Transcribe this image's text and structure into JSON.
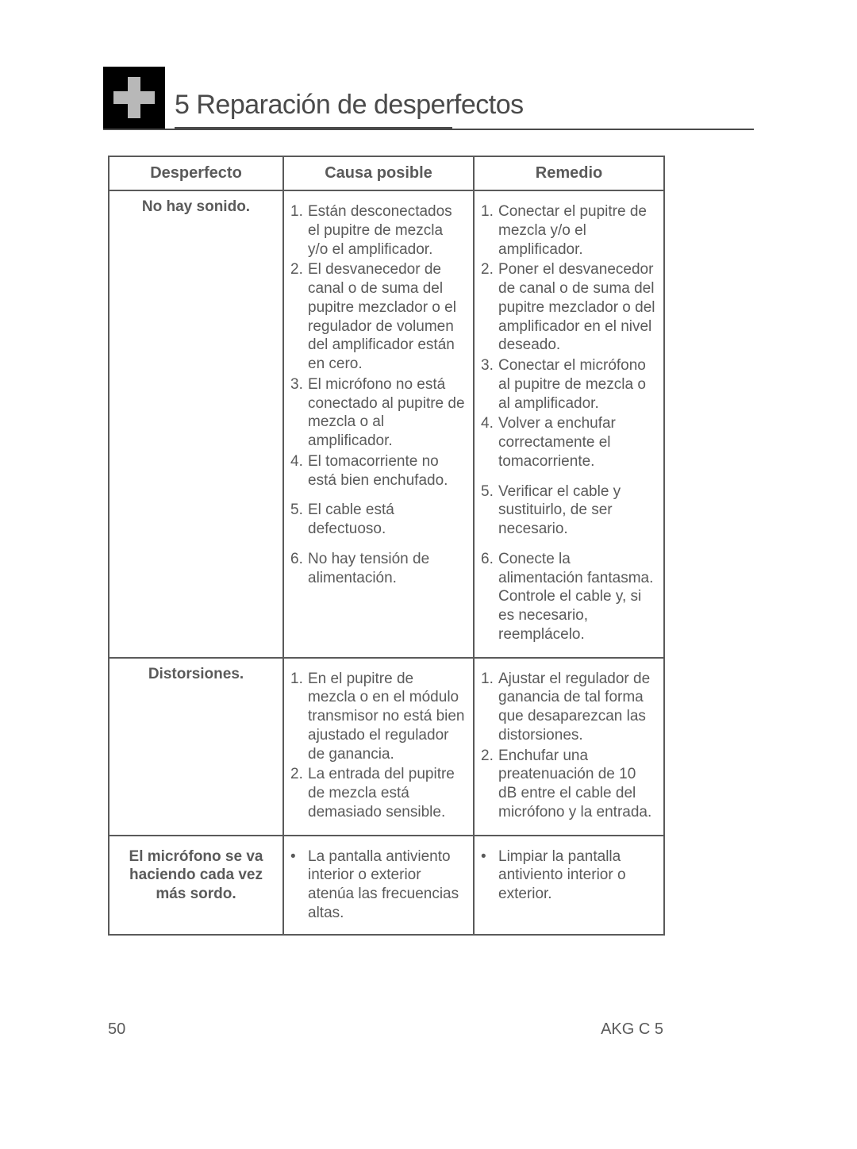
{
  "section": {
    "title": "5 Reparación de desperfectos"
  },
  "table": {
    "headers": [
      "Desperfecto",
      "Causa posible",
      "Remedio"
    ],
    "rows": [
      {
        "label": "No hay sonido.",
        "causes": [
          "Están desconectados el pupitre de mezcla y/o el amplificador.",
          "El desvanecedor de canal o de suma del pupitre mezclador o el regulador de volumen del amplificador están en cero.",
          "El micrófono no está conectado al pupitre de mezcla o al amplificador.",
          "El tomacorriente no está bien enchufado.",
          "El cable está defectuoso.",
          "No hay tensión de alimentación."
        ],
        "remedies": [
          "Conectar el pupitre de mezcla y/o el amplificador.",
          "Poner el desvanecedor de canal o de suma del pupitre mezclador o del amplificador en el nivel deseado.",
          "Conectar el micrófono al pupitre de mezcla o al amplificador.",
          "Volver a enchufar correctamente el tomacorriente.",
          "Verificar el cable y sustituirlo, de ser necesario.",
          "Conecte la alimentación fantasma. Controle el cable y, si es necesario, reemplácelo."
        ],
        "list_type": "num",
        "extra_gap_after": [
          3,
          4
        ]
      },
      {
        "label": "Distorsiones.",
        "causes": [
          "En el pupitre de mezcla o en el módulo transmisor no está bien ajustado el regulador de ganancia.",
          "La entrada del pupitre de mezcla está demasiado sensible."
        ],
        "remedies": [
          "Ajustar el regulador de ganancia de tal forma que desaparezcan las distorsiones.",
          "Enchufar una preatenuación de 10 dB entre el cable del micrófono y la entrada."
        ],
        "list_type": "num"
      },
      {
        "label": "El micrófono se va haciendo cada vez más sordo.",
        "causes": [
          "La pantalla antiviento interior o exterior atenúa las frecuencias altas."
        ],
        "remedies": [
          "Limpiar la pantalla antiviento interior o exterior."
        ],
        "list_type": "bul",
        "label_valign": "top"
      }
    ]
  },
  "footer": {
    "page": "50",
    "doc": "AKG C 5"
  }
}
